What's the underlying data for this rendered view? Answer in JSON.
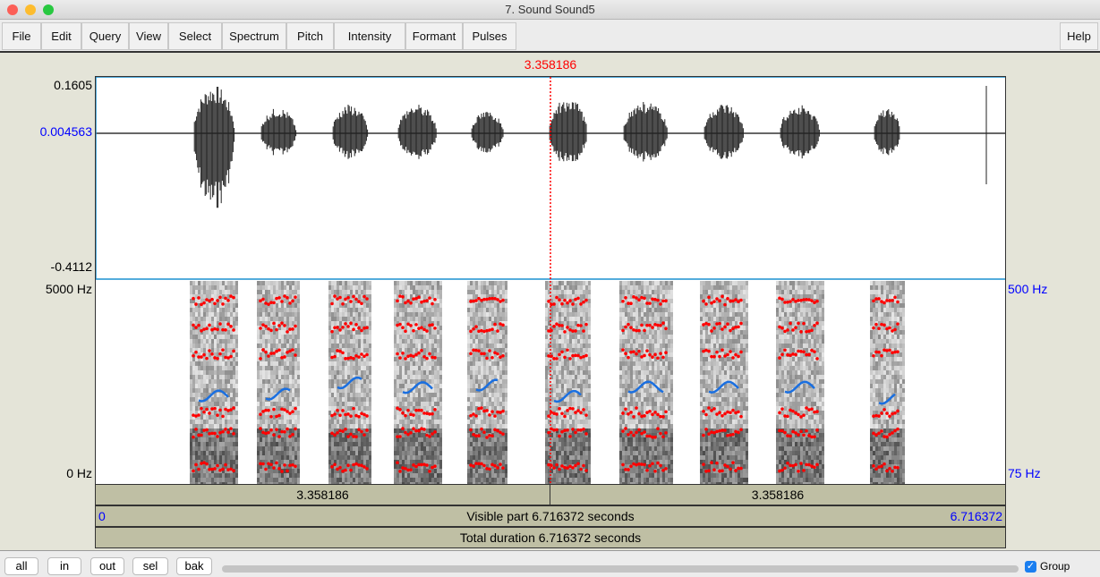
{
  "window": {
    "title": "7. Sound Sound5"
  },
  "menu": [
    "File",
    "Edit",
    "Query",
    "View",
    "Select",
    "Spectrum",
    "Pitch",
    "Intensity",
    "Formant",
    "Pulses"
  ],
  "help": "Help",
  "cursor": {
    "time": "3.358186",
    "color": "#ff0000"
  },
  "waveform": {
    "max": "0.1605",
    "zero": "0.004563",
    "min": "-0.4112"
  },
  "spectrogram": {
    "top": "5000 Hz",
    "bottom": "0 Hz",
    "pitch_top": "500 Hz",
    "pitch_bottom": "75 Hz",
    "formant_color": "#ff0000",
    "pitch_color": "#1a6fe0"
  },
  "bars": {
    "left_part": "3.358186",
    "right_part": "3.358186",
    "start": "0",
    "visible": "Visible part 6.716372 seconds",
    "end": "6.716372",
    "total": "Total duration 6.716372 seconds"
  },
  "bottom": {
    "buttons": [
      "all",
      "in",
      "out",
      "sel",
      "bak"
    ],
    "group_label": "Group",
    "group_checked": true
  }
}
